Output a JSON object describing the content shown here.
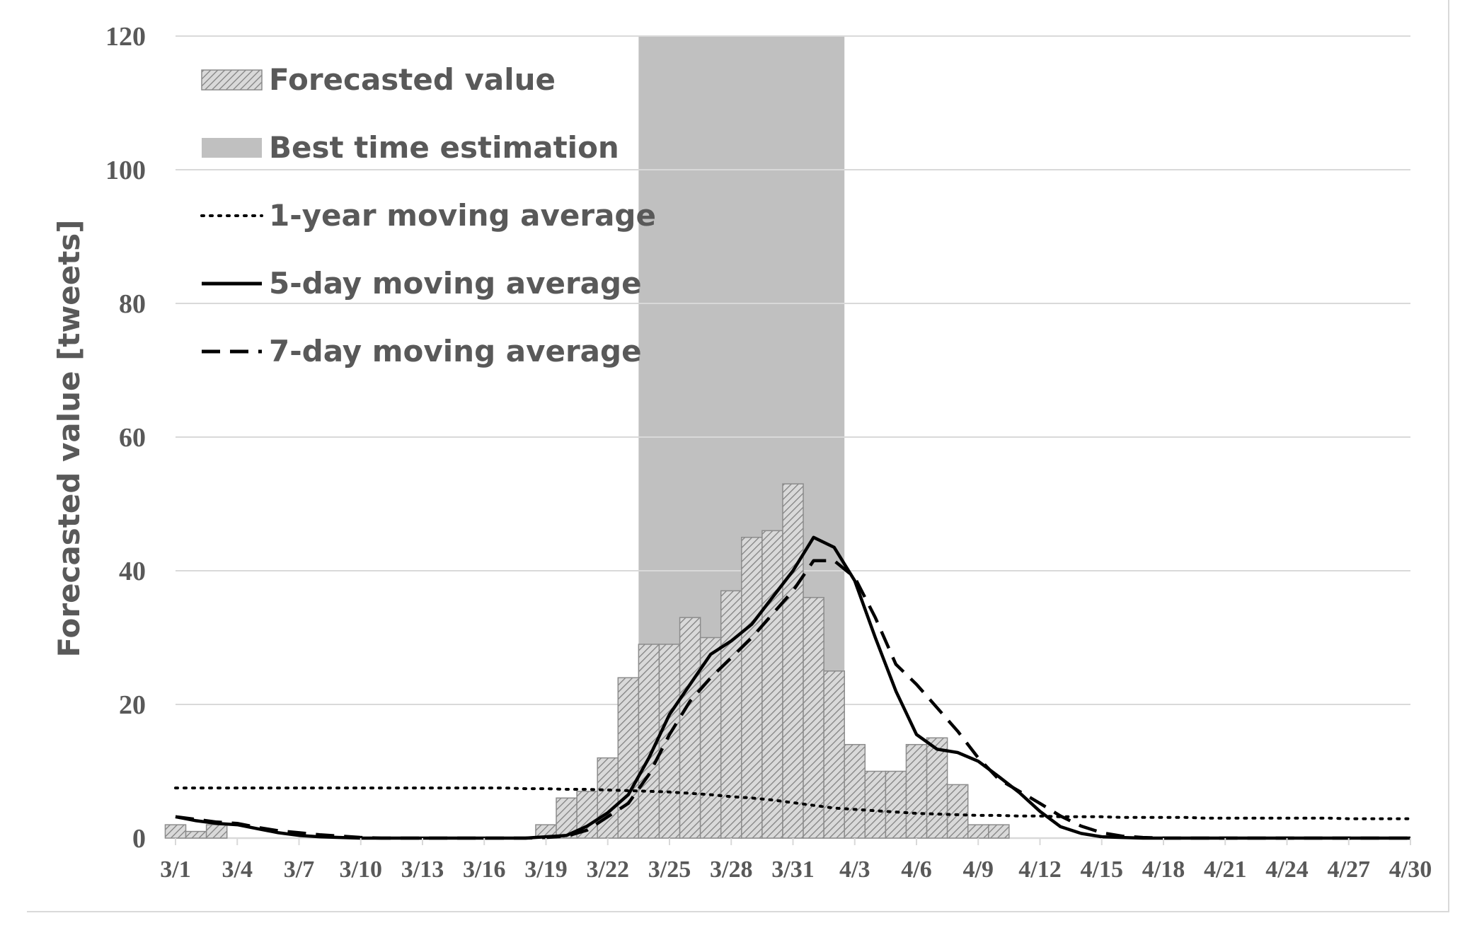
{
  "chart_data": {
    "type": "bar",
    "title": "",
    "xlabel": "",
    "ylabel": "Forecasted value [tweets]",
    "ylim": [
      0,
      120
    ],
    "yticks": [
      "0",
      "20",
      "40",
      "60",
      "80",
      "100",
      "120"
    ],
    "xtick_labels": [
      "3/1",
      "3/4",
      "3/7",
      "3/10",
      "3/13",
      "3/16",
      "3/19",
      "3/22",
      "3/25",
      "3/28",
      "3/31",
      "4/3",
      "4/6",
      "4/9",
      "4/12",
      "4/15",
      "4/18",
      "4/21",
      "4/24",
      "4/27",
      "4/30"
    ],
    "grid": true,
    "legend_position": "top-left",
    "categories": [
      "3/1",
      "3/2",
      "3/3",
      "3/4",
      "3/5",
      "3/6",
      "3/7",
      "3/8",
      "3/9",
      "3/10",
      "3/11",
      "3/12",
      "3/13",
      "3/14",
      "3/15",
      "3/16",
      "3/17",
      "3/18",
      "3/19",
      "3/20",
      "3/21",
      "3/22",
      "3/23",
      "3/24",
      "3/25",
      "3/26",
      "3/27",
      "3/28",
      "3/29",
      "3/30",
      "3/31",
      "4/1",
      "4/2",
      "4/3",
      "4/4",
      "4/5",
      "4/6",
      "4/7",
      "4/8",
      "4/9",
      "4/10",
      "4/11",
      "4/12",
      "4/13",
      "4/14",
      "4/15",
      "4/16",
      "4/17",
      "4/18",
      "4/19",
      "4/20",
      "4/21",
      "4/22",
      "4/23",
      "4/24",
      "4/25",
      "4/26",
      "4/27",
      "4/28",
      "4/29",
      "4/30"
    ],
    "series": [
      {
        "name": "Forecasted value",
        "type": "bar",
        "values": [
          2,
          1,
          2,
          0,
          0,
          0,
          0,
          0,
          0,
          0,
          0,
          0,
          0,
          0,
          0,
          0,
          0,
          0,
          2,
          6,
          7,
          12,
          24,
          29,
          29,
          33,
          30,
          37,
          45,
          46,
          53,
          36,
          25,
          14,
          10,
          10,
          14,
          15,
          8,
          2,
          2,
          0,
          0,
          0,
          0,
          0,
          0,
          0,
          0,
          0,
          0,
          0,
          0,
          0,
          0,
          0,
          0,
          0,
          0,
          0,
          0
        ]
      },
      {
        "name": "1-year moving average",
        "type": "line",
        "style": "dotted",
        "values": [
          7.5,
          7.5,
          7.5,
          7.5,
          7.5,
          7.5,
          7.5,
          7.5,
          7.5,
          7.5,
          7.5,
          7.5,
          7.5,
          7.5,
          7.5,
          7.5,
          7.5,
          7.4,
          7.4,
          7.3,
          7.3,
          7.2,
          7.1,
          7.0,
          6.9,
          6.7,
          6.5,
          6.2,
          6.0,
          5.7,
          5.3,
          4.9,
          4.5,
          4.3,
          4.1,
          3.9,
          3.7,
          3.6,
          3.5,
          3.4,
          3.4,
          3.3,
          3.3,
          3.2,
          3.2,
          3.2,
          3.1,
          3.1,
          3.1,
          3.1,
          3.0,
          3.0,
          3.0,
          3.0,
          3.0,
          3.0,
          3.0,
          2.9,
          2.9,
          2.9,
          2.9
        ]
      },
      {
        "name": "5-day moving average",
        "type": "line",
        "style": "solid",
        "values": [
          3.2,
          2.6,
          2.2,
          2.0,
          1.4,
          0.8,
          0.4,
          0.2,
          0.1,
          0,
          0,
          0,
          0,
          0,
          0,
          0,
          0,
          0,
          0.2,
          0.4,
          1.8,
          3.8,
          6.5,
          12,
          18.5,
          23,
          27.5,
          29.5,
          32,
          36,
          40,
          45,
          43.5,
          38.5,
          30,
          22,
          15.5,
          13.3,
          12.8,
          11.5,
          9.2,
          6.8,
          4,
          1.7,
          0.7,
          0.2,
          0.1,
          0,
          0,
          0,
          0,
          0,
          0,
          0,
          0,
          0,
          0,
          0,
          0,
          0,
          0
        ]
      },
      {
        "name": "7-day moving average",
        "type": "line",
        "style": "dashed",
        "values": [
          3.2,
          2.8,
          2.4,
          2.2,
          1.6,
          1.1,
          0.8,
          0.5,
          0.3,
          0.1,
          0,
          0,
          0,
          0,
          0,
          0,
          0,
          0,
          0.1,
          0.3,
          1.2,
          3.2,
          5.2,
          9.5,
          15.5,
          20.5,
          24,
          27,
          30,
          33.5,
          37,
          41.5,
          41.5,
          39,
          33,
          26,
          23,
          19.5,
          16,
          12,
          8.8,
          7,
          5.2,
          3.3,
          1.8,
          0.8,
          0.3,
          0.1,
          0,
          0,
          0,
          0,
          0,
          0,
          0,
          0,
          0,
          0,
          0,
          0,
          0
        ]
      },
      {
        "name": "Best time estimation",
        "type": "span",
        "start": "3/24",
        "end": "4/2"
      }
    ],
    "legend": [
      "Forecasted value",
      "Best time estimation",
      "1-year moving average",
      "5-day moving average",
      "7-day moving average"
    ]
  },
  "colors": {
    "bar_fill": "#d9d9d9",
    "bar_hatch": "#7f7f7f",
    "bar_edge": "#8c8c8c",
    "span_fill": "#c0c0c0",
    "line": "#000000",
    "grid": "#d9d9d9",
    "text": "#595959"
  }
}
